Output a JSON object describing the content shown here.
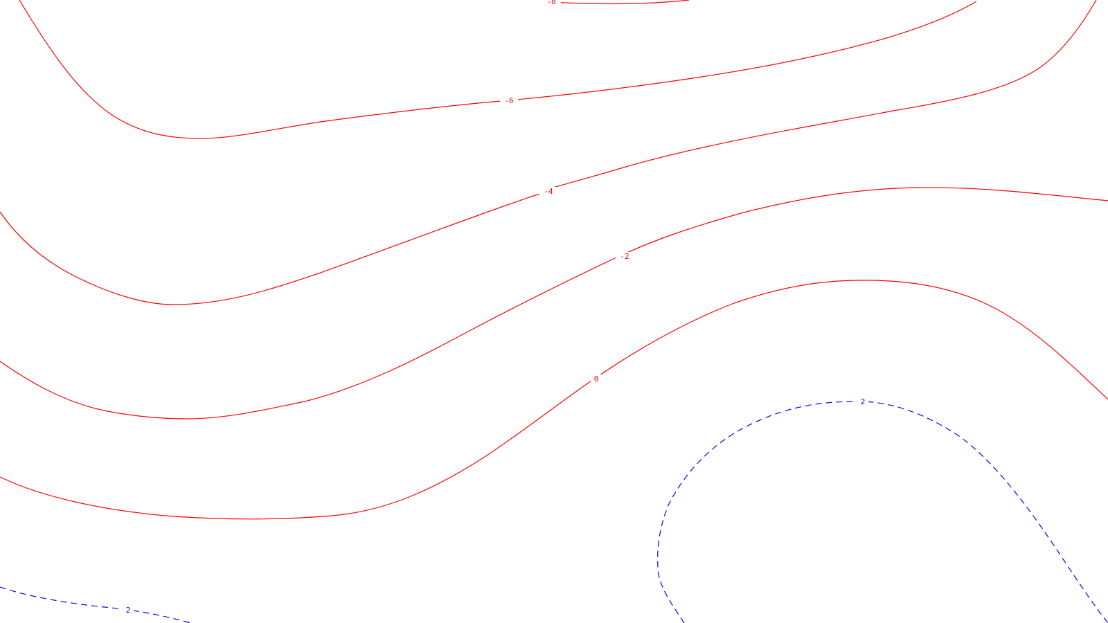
{
  "map": {
    "colors": {
      "background": "#ffffff",
      "negative_line": "#ff0000",
      "positive_line": "#0000ff"
    },
    "line_styles": {
      "negative": "solid",
      "positive": "dashed"
    },
    "contours": [
      {
        "level": -8,
        "label": "-8",
        "sign": "negative"
      },
      {
        "level": -6,
        "label": "-6",
        "sign": "negative"
      },
      {
        "level": -4,
        "label": "-4",
        "sign": "negative"
      },
      {
        "level": -2,
        "label": "-2",
        "sign": "negative"
      },
      {
        "level": 0,
        "label": "0",
        "sign": "negative"
      },
      {
        "level": 2,
        "label": "2",
        "sign": "positive"
      },
      {
        "level": 2,
        "label": "2",
        "sign": "positive"
      }
    ]
  }
}
